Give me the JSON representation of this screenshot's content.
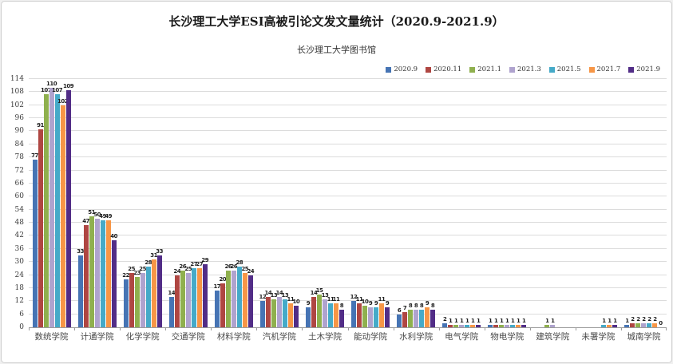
{
  "chart_data": {
    "type": "bar",
    "title": "长沙理工大学ESI高被引论文发文量统计（2020.9-2021.9）",
    "subtitle": "长沙理工大学图书馆",
    "categories": [
      "数统学院",
      "计通学院",
      "化学学院",
      "交通学院",
      "材料学院",
      "汽机学院",
      "土木学院",
      "能动学院",
      "水利学院",
      "电气学院",
      "物电学院",
      "建筑学院",
      "未署学院",
      "城南学院"
    ],
    "series": [
      {
        "name": "2020.9",
        "color": "#4674B4",
        "values": [
          77,
          33,
          22,
          14,
          17,
          12,
          9,
          12,
          6,
          2,
          1,
          null,
          null,
          1
        ]
      },
      {
        "name": "2020.11",
        "color": "#AF4642",
        "values": [
          91,
          47,
          25,
          24,
          20,
          14,
          14,
          11,
          7,
          1,
          1,
          null,
          null,
          2
        ]
      },
      {
        "name": "2021.1",
        "color": "#8FB04E",
        "values": [
          107,
          51,
          23,
          26,
          26,
          13,
          15,
          10,
          8,
          1,
          1,
          1,
          null,
          2
        ]
      },
      {
        "name": "2021.3",
        "color": "#AFA3CE",
        "values": [
          110,
          50,
          25,
          25,
          26,
          14,
          13,
          9,
          8,
          1,
          1,
          1,
          null,
          2
        ]
      },
      {
        "name": "2021.5",
        "color": "#45AAC8",
        "values": [
          107,
          49,
          28,
          27,
          28,
          13,
          11,
          9,
          8,
          1,
          1,
          null,
          1,
          2
        ]
      },
      {
        "name": "2021.7",
        "color": "#F79646",
        "values": [
          102,
          49,
          31,
          27,
          25,
          11,
          11,
          11,
          9,
          1,
          1,
          null,
          1,
          2
        ]
      },
      {
        "name": "2021.9",
        "color": "#522D87",
        "values": [
          109,
          40,
          33,
          29,
          24,
          10,
          8,
          9,
          8,
          1,
          1,
          null,
          1,
          0
        ]
      }
    ],
    "ylim": [
      0,
      114
    ],
    "ytick_step": 6,
    "grid": true,
    "legend_position": "top-right",
    "xlabel": "",
    "ylabel": ""
  }
}
